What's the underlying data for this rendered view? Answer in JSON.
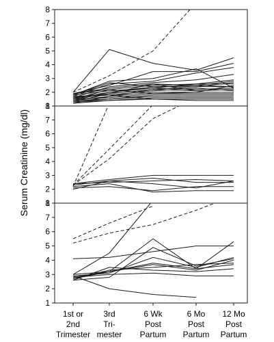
{
  "chart_data": {
    "type": "line",
    "ylabel": "Serum Creatinine (mg/dl)",
    "xlabel": "",
    "categories": [
      [
        "1st or",
        "2nd",
        "Trimester"
      ],
      [
        "3rd",
        "Tri-",
        "mester"
      ],
      [
        "6 Wk",
        "Post",
        "Partum"
      ],
      [
        "6 Mo",
        "Post",
        "Partum"
      ],
      [
        "12 Mo",
        "Post",
        "Partum"
      ]
    ],
    "grid": false,
    "line_color": "#1a1a1a",
    "panels": [
      {
        "ylim": [
          1,
          8
        ],
        "yticks": [
          1,
          2,
          3,
          4,
          5,
          6,
          7,
          8
        ],
        "series": [
          {
            "values": [
              2.0,
              5.1,
              4.1,
              3.6,
              4.5
            ],
            "dashed": false
          },
          {
            "values": [
              2.0,
              3.2,
              5.0,
              8.5,
              null
            ],
            "dashed": true
          },
          {
            "values": [
              1.9,
              2.5,
              3.5,
              3.5,
              4.1
            ],
            "dashed": false
          },
          {
            "values": [
              1.8,
              2.8,
              3.0,
              3.7,
              2.3
            ],
            "dashed": false
          },
          {
            "values": [
              1.7,
              2.6,
              2.8,
              3.4,
              3.8
            ],
            "dashed": false
          },
          {
            "values": [
              1.6,
              2.4,
              2.7,
              2.9,
              3.3
            ],
            "dashed": false
          },
          {
            "values": [
              1.9,
              2.3,
              2.6,
              2.5,
              2.8
            ],
            "dashed": false
          },
          {
            "values": [
              1.5,
              2.2,
              2.5,
              2.6,
              2.6
            ],
            "dashed": false
          },
          {
            "values": [
              1.4,
              2.0,
              2.4,
              2.4,
              2.4
            ],
            "dashed": false
          },
          {
            "values": [
              1.8,
              2.1,
              2.3,
              2.2,
              2.3
            ],
            "dashed": false
          },
          {
            "values": [
              1.3,
              1.9,
              2.2,
              2.1,
              2.2
            ],
            "dashed": false
          },
          {
            "values": [
              1.6,
              1.8,
              2.1,
              2.3,
              2.1
            ],
            "dashed": false
          },
          {
            "values": [
              1.2,
              1.7,
              2.0,
              2.0,
              2.0
            ],
            "dashed": false
          },
          {
            "values": [
              1.5,
              1.6,
              1.9,
              1.9,
              1.9
            ],
            "dashed": false
          },
          {
            "values": [
              1.4,
              1.5,
              1.8,
              1.8,
              1.8
            ],
            "dashed": false
          },
          {
            "values": [
              1.3,
              1.5,
              1.7,
              1.7,
              1.7
            ],
            "dashed": false
          },
          {
            "values": [
              1.2,
              1.4,
              1.6,
              1.6,
              1.6
            ],
            "dashed": false
          },
          {
            "values": [
              1.7,
              1.8,
              1.5,
              1.5,
              1.5
            ],
            "dashed": false
          },
          {
            "values": [
              1.6,
              2.0,
              2.3,
              2.6,
              2.9
            ],
            "dashed": false
          },
          {
            "values": [
              1.9,
              2.2,
              1.9,
              2.0,
              2.5
            ],
            "dashed": false
          },
          {
            "values": [
              1.5,
              1.9,
              2.6,
              2.1,
              2.2
            ],
            "dashed": false
          },
          {
            "values": [
              1.4,
              1.7,
              2.2,
              2.4,
              2.7
            ],
            "dashed": false
          },
          {
            "values": [
              1.3,
              1.4,
              1.5,
              1.4,
              1.4
            ],
            "dashed": false
          },
          {
            "values": [
              1.8,
              2.7,
              2.4,
              2.5,
              2.4
            ],
            "dashed": false
          }
        ]
      },
      {
        "ylim": [
          1,
          8
        ],
        "yticks": [
          1,
          2,
          3,
          4,
          5,
          6,
          7,
          8
        ],
        "series": [
          {
            "values": [
              2.2,
              8.2,
              null,
              null,
              null
            ],
            "dashed": true
          },
          {
            "values": [
              2.3,
              4.9,
              8.1,
              null,
              null
            ],
            "dashed": true
          },
          {
            "values": [
              2.3,
              4.2,
              7.1,
              8.6,
              null
            ],
            "dashed": true
          },
          {
            "values": [
              2.4,
              2.7,
              3.0,
              3.0,
              3.0
            ],
            "dashed": false
          },
          {
            "values": [
              2.3,
              2.6,
              2.4,
              2.1,
              2.6
            ],
            "dashed": false
          },
          {
            "values": [
              2.2,
              2.4,
              1.8,
              1.9,
              1.9
            ],
            "dashed": false
          },
          {
            "values": [
              2.1,
              2.2,
              1.9,
              2.2,
              2.2
            ],
            "dashed": false
          },
          {
            "values": [
              2.4,
              2.5,
              2.6,
              2.7,
              2.6
            ],
            "dashed": false
          },
          {
            "values": [
              2.0,
              2.6,
              2.8,
              2.5,
              2.5
            ],
            "dashed": false
          }
        ]
      },
      {
        "ylim": [
          1,
          8
        ],
        "yticks": [
          1,
          2,
          3,
          4,
          5,
          6,
          7,
          8
        ],
        "series": [
          {
            "values": [
              5.5,
              6.6,
              7.8,
              null,
              null
            ],
            "dashed": true
          },
          {
            "values": [
              5.2,
              5.9,
              6.5,
              7.5,
              8.5
            ],
            "dashed": true
          },
          {
            "values": [
              4.1,
              4.2,
              4.6,
              5.0,
              5.0
            ],
            "dashed": false
          },
          {
            "values": [
              3.0,
              4.5,
              8.2,
              null,
              null
            ],
            "dashed": false
          },
          {
            "values": [
              3.0,
              3.2,
              5.5,
              3.4,
              5.3
            ],
            "dashed": false
          },
          {
            "values": [
              2.9,
              3.1,
              4.2,
              3.5,
              4.2
            ],
            "dashed": false
          },
          {
            "values": [
              2.8,
              3.2,
              3.7,
              3.3,
              4.0
            ],
            "dashed": false
          },
          {
            "values": [
              2.7,
              3.3,
              3.5,
              3.7,
              3.8
            ],
            "dashed": false
          },
          {
            "values": [
              2.6,
              2.8,
              4.9,
              3.6,
              4.1
            ],
            "dashed": false
          },
          {
            "values": [
              2.8,
              3.0,
              3.1,
              2.9,
              2.9
            ],
            "dashed": false
          },
          {
            "values": [
              2.6,
              3.5,
              3.3,
              3.2,
              3.4
            ],
            "dashed": false
          },
          {
            "values": [
              2.9,
              2.0,
              1.6,
              1.4,
              null
            ],
            "dashed": false
          },
          {
            "values": [
              2.7,
              3.2,
              3.8,
              3.4,
              3.7
            ],
            "dashed": false
          }
        ]
      }
    ]
  }
}
